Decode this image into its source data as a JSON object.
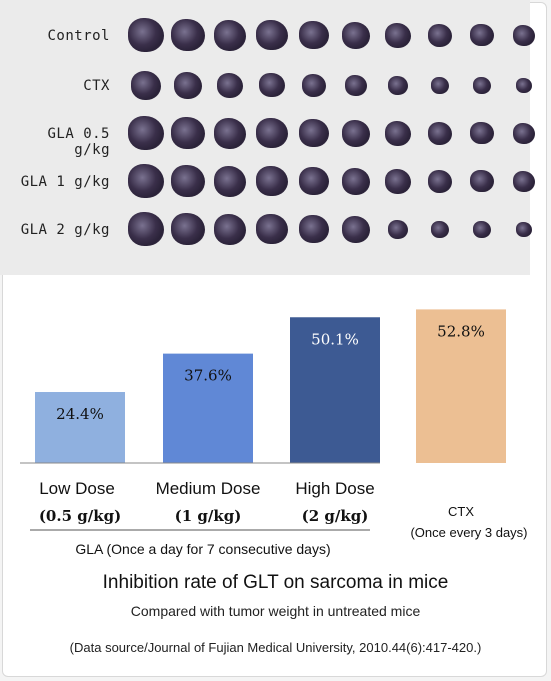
{
  "specimen_rows": [
    "Control",
    "CTX",
    "GLA 0.5 g/kg",
    "GLA  1 g/kg",
    "GLA  2 g/kg"
  ],
  "chart_data": {
    "type": "bar",
    "categories": [
      "Low Dose",
      "Medium Dose",
      "High Dose",
      "CTX"
    ],
    "dose_labels": [
      "(0.5 g/kg)",
      "(1 g/kg)",
      "(2 g/kg)",
      "(Once every 3 days)"
    ],
    "values": [
      24.4,
      37.6,
      50.1,
      52.8
    ],
    "value_labels": [
      "24.4%",
      "37.6%",
      "50.1%",
      "52.8%"
    ],
    "colors": [
      "#8fb0df",
      "#6088d6",
      "#3d5a93",
      "#ecbf93"
    ],
    "group_label": "GLA (Once a day for 7 consecutive days)",
    "title": "Inhibition rate of GLT on sarcoma in mice",
    "subtitle": "Compared with tumor weight in untreated mice",
    "ylim": [
      0,
      55
    ]
  },
  "source": "(Data source/Journal of Fujian Medical University, 2010.44(6):417-420.)"
}
